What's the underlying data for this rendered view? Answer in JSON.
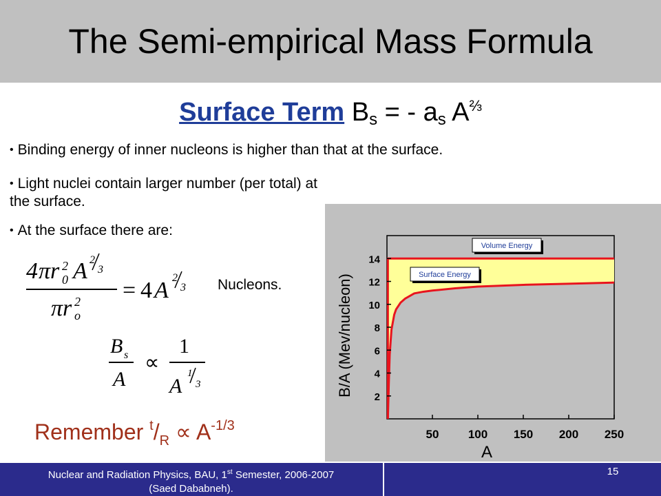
{
  "slide": {
    "title": "The Semi-empirical Mass Formula",
    "subtitle": {
      "link_text": "Surface Term",
      "formula_pre": " B",
      "formula_sub_s": "s",
      "formula_mid": " = - a",
      "formula_sub_s2": "s",
      "formula_post": " A",
      "formula_exp": "⅔"
    },
    "bullets": [
      "Binding energy of inner nucleons is higher than that at the surface.",
      "Light nuclei contain larger number (per total) at the surface.",
      "At the surface there are:"
    ],
    "equation_note": "Nucleons.",
    "remember": {
      "label": "Remember ",
      "t": "t",
      "slash": "/",
      "R": "R",
      "prop": " ∝ A",
      "exp": "-1/3"
    }
  },
  "footer": {
    "line1": "Nuclear and Radiation Physics, BAU, 1",
    "line1_sup": "st",
    "line1_rest": " Semester, 2006-2007",
    "line2": "(Saed Dababneh).",
    "page_number": "15"
  },
  "chart_data": {
    "type": "line",
    "title": "",
    "xlabel": "A",
    "ylabel": "B/A (Mev/nucleon)",
    "xlim": [
      0,
      250
    ],
    "ylim": [
      0,
      16
    ],
    "xticks": [
      50,
      100,
      150,
      200,
      250
    ],
    "yticks": [
      2,
      4,
      6,
      8,
      10,
      12,
      14
    ],
    "series": [
      {
        "name": "Volume Energy",
        "x": [
          0,
          250
        ],
        "y": [
          14,
          14
        ]
      },
      {
        "name": "Surface Energy",
        "x": [
          1,
          2,
          3,
          5,
          8,
          10,
          15,
          20,
          30,
          40,
          50,
          75,
          100,
          150,
          200,
          250
        ],
        "y": [
          0,
          3.0,
          5.6,
          7.8,
          9.1,
          9.55,
          10.15,
          10.5,
          10.95,
          11.1,
          11.2,
          11.4,
          11.55,
          11.7,
          11.8,
          11.9
        ]
      }
    ],
    "fill_between": "Surface Energy to Volume Energy",
    "colors": {
      "line": "#e8141e",
      "fill": "#ffff99",
      "background": "#c0c0c0"
    }
  }
}
